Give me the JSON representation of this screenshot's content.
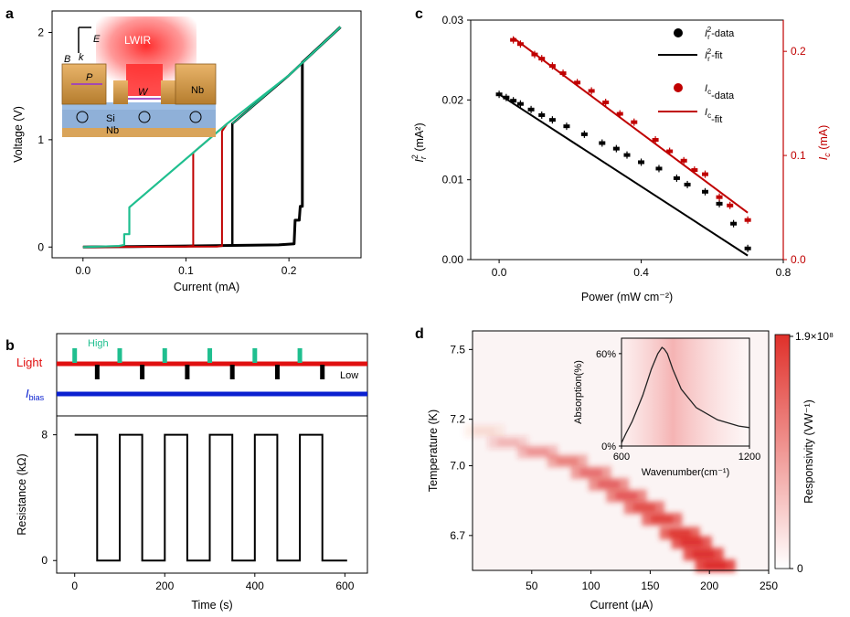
{
  "panel_letters": [
    "a",
    "b",
    "c",
    "d"
  ],
  "chart_data": [
    {
      "panel": "a",
      "type": "line",
      "xlabel": "Current (mA)",
      "ylabel": "Voltage (V)",
      "xlim": [
        -0.03,
        0.27
      ],
      "ylim": [
        -0.1,
        2.2
      ],
      "xticks": [
        "0.0",
        "0.1",
        "0.2"
      ],
      "yticks": [
        "0",
        "1",
        "2"
      ],
      "grid": false,
      "series": [
        {
          "color": "#000000",
          "x": [
            0.0,
            0.05,
            0.1,
            0.145,
            0.19,
            0.205,
            0.206,
            0.21,
            0.211,
            0.213,
            0.213,
            0.25
          ],
          "y": [
            0.0,
            0.005,
            0.01,
            0.015,
            0.02,
            0.03,
            0.25,
            0.25,
            0.38,
            0.38,
            1.72,
            2.05
          ]
        },
        {
          "color": "#000000",
          "x": [
            0.145,
            0.145,
            0.2,
            0.25
          ],
          "y": [
            0.015,
            1.15,
            1.6,
            2.05
          ]
        },
        {
          "color": "#c00000",
          "x": [
            0.0,
            0.1,
            0.107,
            0.107,
            0.14
          ],
          "y": [
            0.0,
            0.005,
            0.01,
            0.88,
            1.15
          ]
        },
        {
          "color": "#c00000",
          "x": [
            0.0,
            0.13,
            0.135,
            0.135,
            0.14
          ],
          "y": [
            0.0,
            0.005,
            0.01,
            1.08,
            1.15
          ]
        },
        {
          "color": "#1fbf8f",
          "x": [
            0.0,
            0.035,
            0.04,
            0.04,
            0.045,
            0.045,
            0.14,
            0.2,
            0.25
          ],
          "y": [
            0.0,
            0.01,
            0.02,
            0.12,
            0.12,
            0.37,
            1.15,
            1.6,
            2.05
          ]
        }
      ],
      "inset": {
        "labels": [
          "E",
          "B",
          "k",
          "LWIR",
          "P",
          "W",
          "Nb",
          "Si",
          "Nb"
        ]
      }
    },
    {
      "panel": "b",
      "type": "line",
      "xlabel": "Time (s)",
      "ylabel": "Resistance (kΩ)",
      "xlim": [
        -40,
        650
      ],
      "ylim": [
        -0.8,
        9.2
      ],
      "xticks": [
        "0",
        "200",
        "400",
        "600"
      ],
      "yticks": [
        "0",
        "8"
      ],
      "grid": false,
      "period_s": 100,
      "on_duration_s": 50,
      "high_value": 8,
      "low_value": 0,
      "t_start": 0,
      "t_end": 605,
      "light_trace": {
        "label": "Light",
        "high_label": "High",
        "low_label": "Low",
        "color": "#e01010",
        "high_color": "#1fbf8f",
        "low_color": "#000000"
      },
      "bias_trace": {
        "label": "I",
        "subscript": "bias",
        "color": "#0a20d0"
      }
    },
    {
      "panel": "c",
      "type": "scatter",
      "xlabel": "Power (mW cm⁻²)",
      "ylabel_left": {
        "main": "I",
        "sub": "r",
        "sup": "2",
        "unit": " (mA²)"
      },
      "ylabel_right": {
        "main": "I",
        "sub": "c",
        "unit": " (mA)"
      },
      "xlim": [
        -0.08,
        0.8
      ],
      "ylim_left": [
        0.0,
        0.03
      ],
      "ylim_right": [
        0.0,
        0.23
      ],
      "xticks": [
        "0.0",
        "0.4",
        "0.8"
      ],
      "yticks_left": [
        "0.00",
        "0.01",
        "0.02",
        "0.03"
      ],
      "yticks_right": [
        "0.0",
        "0.1",
        "0.2"
      ],
      "grid": false,
      "legend_position": "top-right",
      "series": [
        {
          "name": "Ir²-data",
          "axis": "left",
          "color": "#000000",
          "x": [
            0.0,
            0.02,
            0.04,
            0.06,
            0.09,
            0.12,
            0.15,
            0.19,
            0.24,
            0.29,
            0.33,
            0.36,
            0.4,
            0.45,
            0.5,
            0.53,
            0.58,
            0.62,
            0.66,
            0.7
          ],
          "y": [
            0.0207,
            0.0203,
            0.0199,
            0.0195,
            0.0188,
            0.0181,
            0.0175,
            0.0167,
            0.0157,
            0.0146,
            0.0139,
            0.0131,
            0.0122,
            0.0114,
            0.0102,
            0.0094,
            0.0085,
            0.007,
            0.0045,
            0.0014
          ]
        },
        {
          "name": "Ir²-fit",
          "axis": "left",
          "color": "#000000",
          "x": [
            0.0,
            0.7
          ],
          "y": [
            0.0207,
            0.0005
          ]
        },
        {
          "name": "Ic-data",
          "axis": "right",
          "color": "#c00000",
          "x": [
            0.04,
            0.06,
            0.1,
            0.12,
            0.15,
            0.18,
            0.22,
            0.26,
            0.3,
            0.34,
            0.38,
            0.44,
            0.48,
            0.52,
            0.55,
            0.58,
            0.62,
            0.65,
            0.7
          ],
          "y": [
            0.211,
            0.207,
            0.197,
            0.193,
            0.186,
            0.179,
            0.17,
            0.162,
            0.151,
            0.14,
            0.132,
            0.115,
            0.104,
            0.095,
            0.086,
            0.082,
            0.06,
            0.052,
            0.038
          ]
        },
        {
          "name": "Ic-fit",
          "axis": "right",
          "color": "#c00000",
          "x": [
            0.04,
            0.7
          ],
          "y": [
            0.213,
            0.045
          ]
        }
      ],
      "legend": [
        {
          "kind": "dot",
          "color": "#000000",
          "main": "I",
          "sub": "r",
          "sup": "2",
          "suffix": "-data"
        },
        {
          "kind": "line",
          "color": "#000000",
          "main": "I",
          "sub": "r",
          "sup": "2",
          "suffix": "-fit"
        },
        {
          "kind": "dot",
          "color": "#c00000",
          "main": "I",
          "sub": "c",
          "sup": "",
          "suffix": "-data"
        },
        {
          "kind": "line",
          "color": "#c00000",
          "main": "I",
          "sub": "c",
          "sup": "",
          "suffix": "-fit"
        }
      ]
    },
    {
      "panel": "d",
      "type": "heatmap",
      "xlabel": "Current (μA)",
      "ylabel": "Temperature (K)",
      "xlim": [
        0,
        250
      ],
      "ylim": [
        6.55,
        7.58
      ],
      "xticks": [
        "50",
        "100",
        "150",
        "200",
        "250"
      ],
      "yticks": [
        "6.7",
        "7.0",
        "7.2",
        "7.5"
      ],
      "colorbar": {
        "label": "Responsivity (VW⁻¹)",
        "max_label": "1.9×10⁸",
        "min_label": "0",
        "min_color": "#ffffff",
        "max_color": "#e0302a"
      },
      "ridge": {
        "current_uA": [
          10,
          30,
          55,
          80,
          100,
          115,
          130,
          145,
          160,
          175,
          185,
          195,
          205
        ],
        "temperature_K": [
          7.15,
          7.1,
          7.06,
          7.02,
          6.97,
          6.92,
          6.87,
          6.82,
          6.77,
          6.71,
          6.67,
          6.62,
          6.57
        ],
        "intensity": [
          0.08,
          0.18,
          0.3,
          0.38,
          0.45,
          0.5,
          0.55,
          0.62,
          0.68,
          0.72,
          0.78,
          0.82,
          0.85
        ]
      },
      "inset": {
        "xlabel": "Wavenumber(cm⁻¹)",
        "ylabel": "Absorption(%)",
        "xlim": [
          600,
          1200
        ],
        "ylim": [
          0,
          70
        ],
        "xticks": [
          "600",
          "1200"
        ],
        "yticks": [
          "0%",
          "60%"
        ],
        "wavenumber": [
          600,
          620,
          650,
          700,
          740,
          770,
          790,
          800,
          815,
          840,
          880,
          950,
          1050,
          1150,
          1200
        ],
        "absorption": [
          2,
          8,
          16,
          33,
          50,
          60,
          64,
          63,
          60,
          50,
          37,
          25,
          17,
          13,
          12
        ]
      }
    }
  ]
}
